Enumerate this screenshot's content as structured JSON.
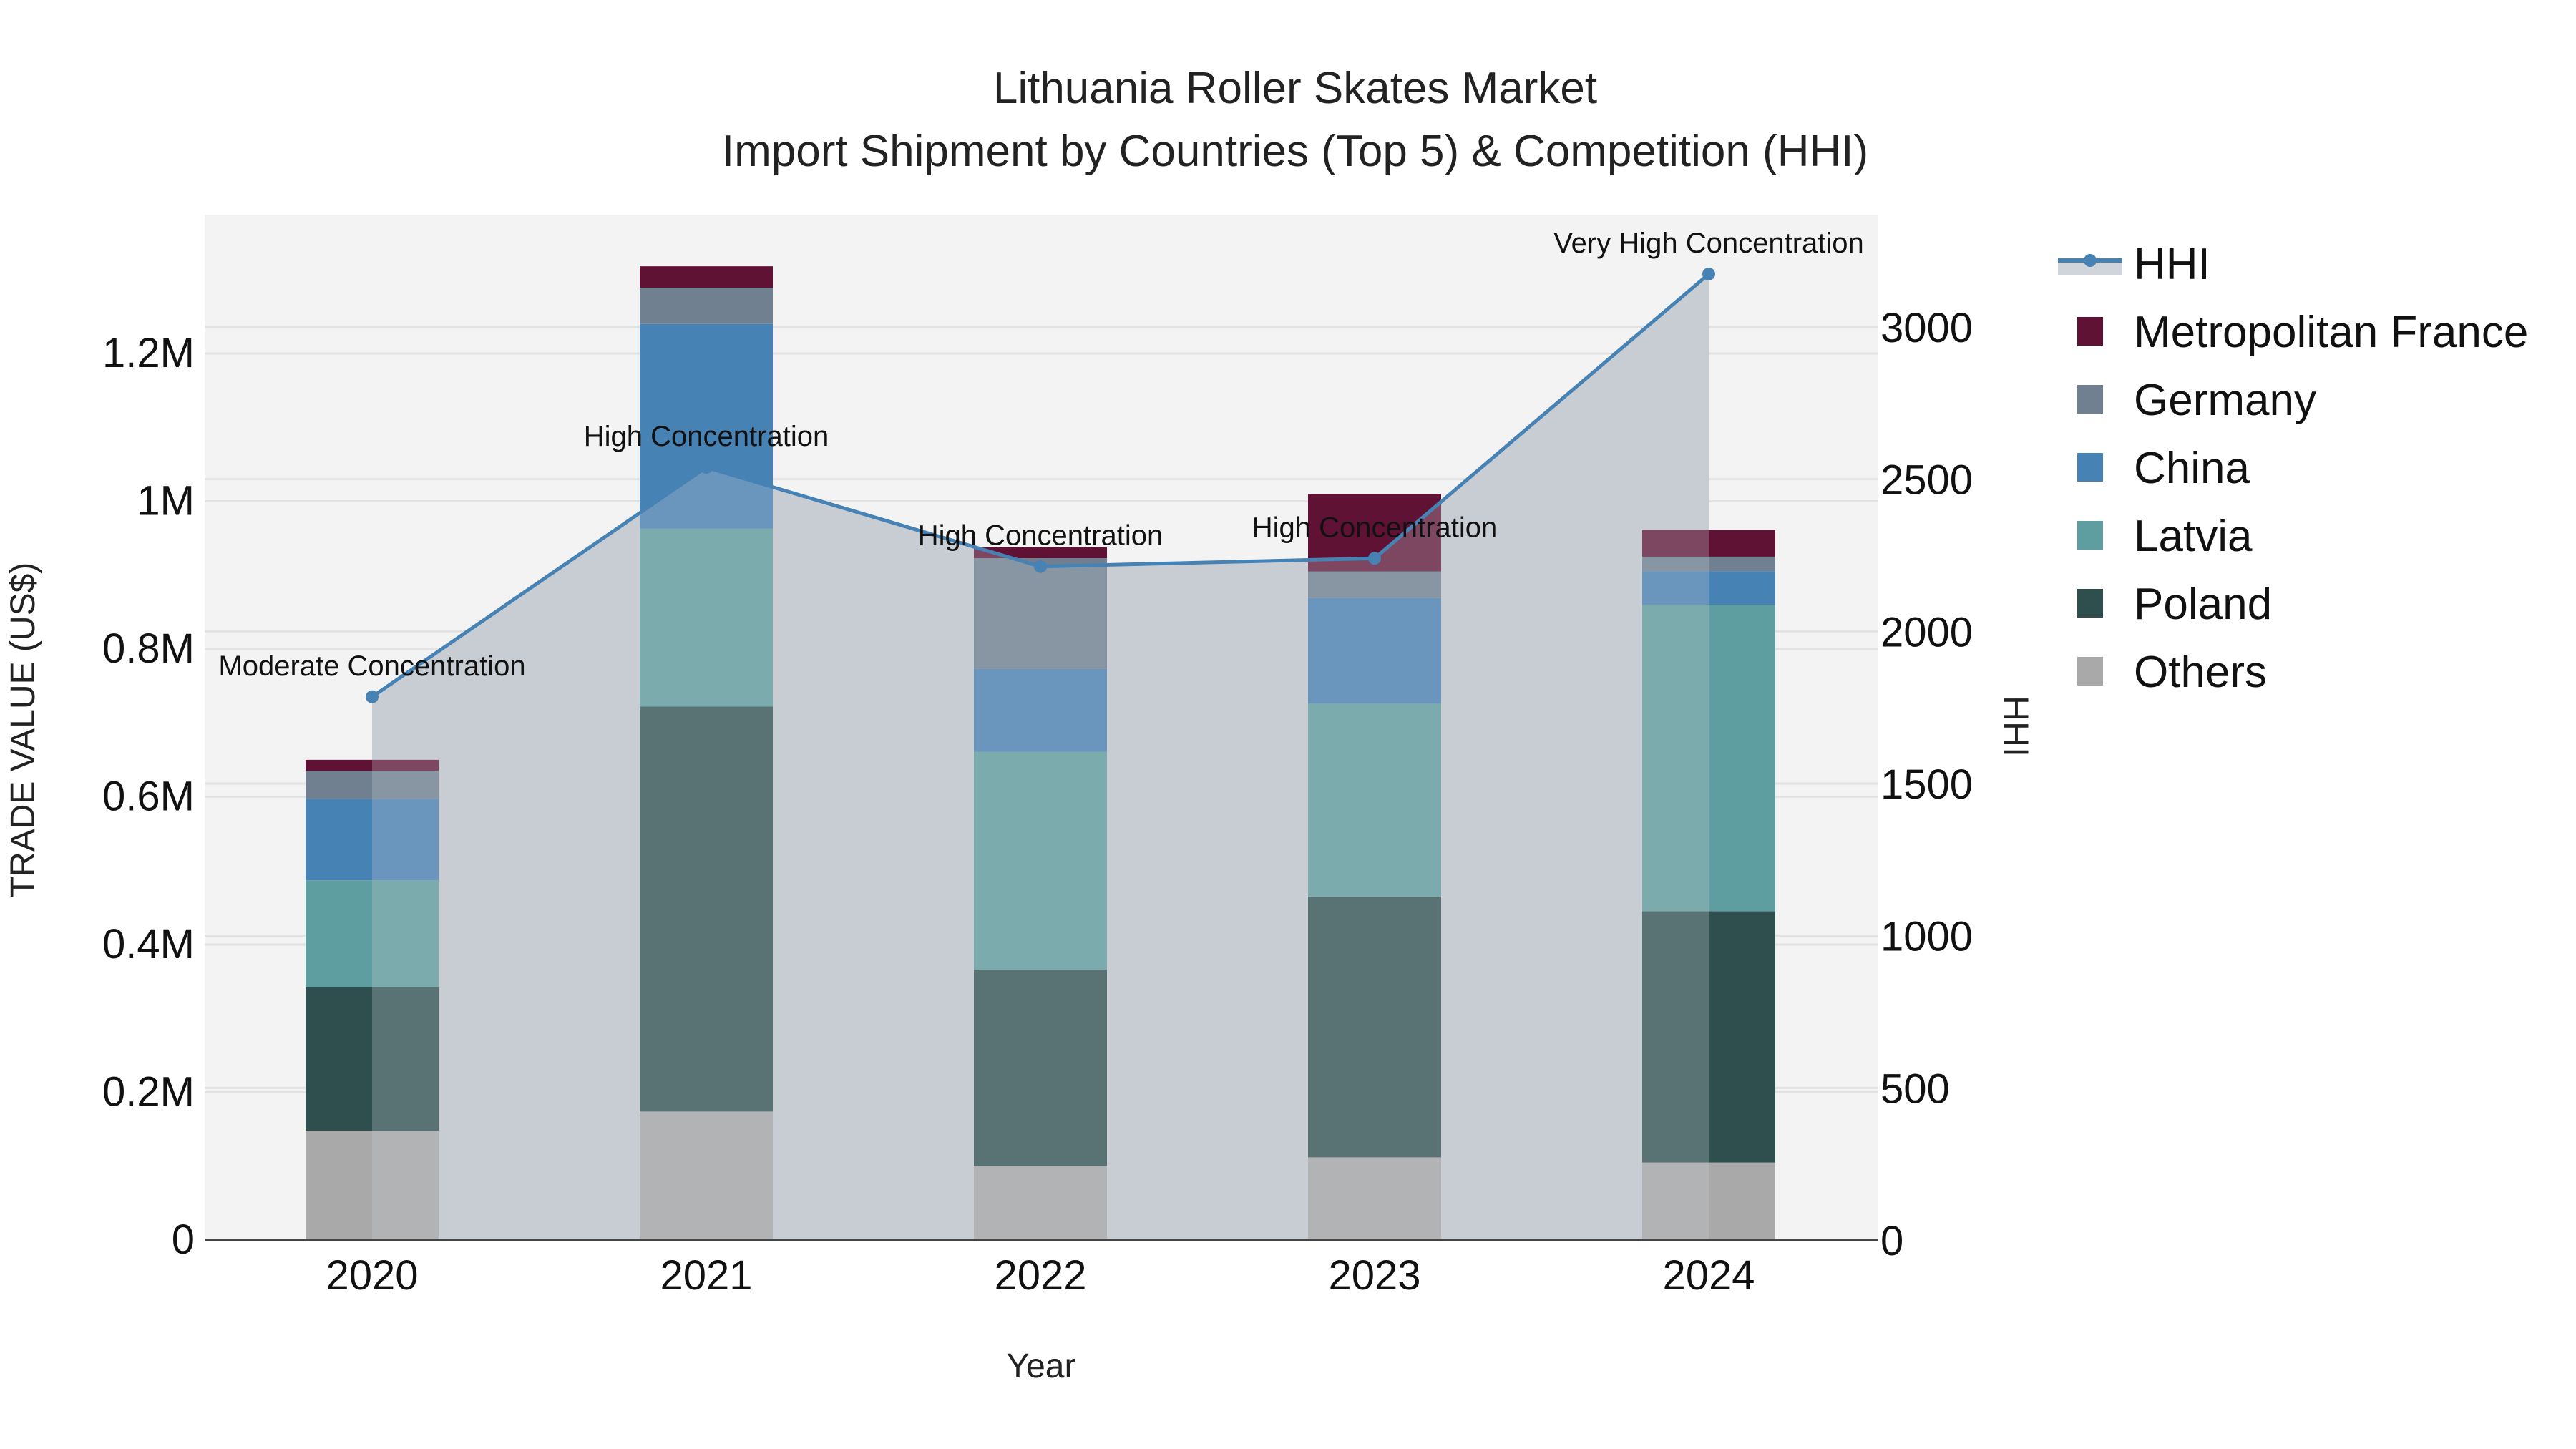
{
  "title": {
    "line1": "Lithuania Roller Skates Market",
    "line2": "Import Shipment by Countries (Top 5) & Competition (HHI)"
  },
  "axes": {
    "x_title": "Year",
    "y_left_title": "TRADE VALUE (US$)",
    "y_right_title": "HHI",
    "y_left_ticks": [
      "0",
      "0.2M",
      "0.4M",
      "0.6M",
      "0.8M",
      "1M",
      "1.2M"
    ],
    "y_right_ticks": [
      "0",
      "500",
      "1000",
      "1500",
      "2000",
      "2500",
      "3000"
    ]
  },
  "legend": {
    "items": [
      {
        "label": "HHI",
        "type": "line",
        "color": "#4682B4"
      },
      {
        "label": "Metropolitan France",
        "type": "bar",
        "color": "#601235"
      },
      {
        "label": "Germany",
        "type": "bar",
        "color": "#708090"
      },
      {
        "label": "China",
        "type": "bar",
        "color": "#4682B4"
      },
      {
        "label": "Latvia",
        "type": "bar",
        "color": "#5F9EA0"
      },
      {
        "label": "Poland",
        "type": "bar",
        "color": "#2F4F4F"
      },
      {
        "label": "Others",
        "type": "bar",
        "color": "#A9A9A9"
      }
    ]
  },
  "annotations": [
    {
      "year": "2020",
      "text": "Moderate Concentration"
    },
    {
      "year": "2021",
      "text": "High Concentration"
    },
    {
      "year": "2022",
      "text": "High Concentration"
    },
    {
      "year": "2023",
      "text": "High Concentration"
    },
    {
      "year": "2024",
      "text": "Very High Concentration"
    }
  ],
  "chart_data": {
    "type": "bar",
    "subtype": "stacked bar with HHI line (secondary axis)",
    "title": "Lithuania Roller Skates Market — Import Shipment by Countries (Top 5) & Competition (HHI)",
    "xlabel": "Year",
    "ylabel": "TRADE VALUE (US$)",
    "y2label": "HHI",
    "categories": [
      "2020",
      "2021",
      "2022",
      "2023",
      "2024"
    ],
    "ylim": [
      0,
      1380000
    ],
    "y2lim": [
      0,
      3370
    ],
    "grid": true,
    "legend_position": "right",
    "series": [
      {
        "name": "Others",
        "color": "#A9A9A9",
        "values": [
          148000,
          174000,
          100000,
          112000,
          105000
        ]
      },
      {
        "name": "Poland",
        "color": "#2F4F4F",
        "values": [
          194000,
          548000,
          266000,
          353000,
          340000
        ]
      },
      {
        "name": "Latvia",
        "color": "#5F9EA0",
        "values": [
          145000,
          241000,
          295000,
          261000,
          415000
        ]
      },
      {
        "name": "China",
        "color": "#4682B4",
        "values": [
          110000,
          277000,
          112000,
          143000,
          45000
        ]
      },
      {
        "name": "Germany",
        "color": "#708090",
        "values": [
          38000,
          49000,
          150000,
          36000,
          20000
        ]
      },
      {
        "name": "Metropolitan France",
        "color": "#601235",
        "values": [
          15000,
          29000,
          15000,
          105000,
          36000
        ]
      }
    ],
    "totals": [
      650000,
      1318000,
      938000,
      1010000,
      961000
    ],
    "line_series": {
      "name": "HHI",
      "axis": "right",
      "color": "#4682B4",
      "values": [
        1785,
        2539,
        2213,
        2240,
        3174
      ],
      "labels": [
        "Moderate Concentration",
        "High Concentration",
        "High Concentration",
        "High Concentration",
        "Very High Concentration"
      ]
    }
  }
}
